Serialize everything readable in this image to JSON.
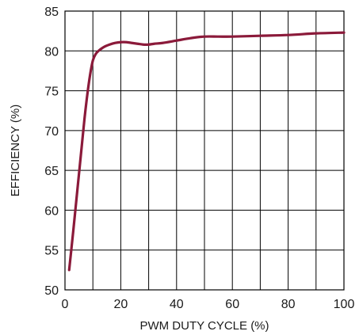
{
  "chart_data": {
    "type": "line",
    "title": "",
    "xlabel": "PWM DUTY CYCLE (%)",
    "ylabel": "EFFICIENCY (%)",
    "xlim": [
      0,
      100
    ],
    "ylim": [
      50,
      85
    ],
    "x_ticks": [
      0,
      20,
      40,
      60,
      80,
      100
    ],
    "y_ticks": [
      50,
      55,
      60,
      65,
      70,
      75,
      80,
      85
    ],
    "grid": true,
    "legend": "none",
    "series": [
      {
        "color": "#8b1a3a",
        "x": [
          1.5,
          3,
          4,
          5,
          6,
          7,
          8,
          9,
          10,
          11,
          12,
          14,
          16,
          18,
          20,
          22,
          24,
          26,
          28,
          30,
          32,
          35,
          40,
          45,
          50,
          55,
          60,
          70,
          80,
          90,
          100
        ],
        "y": [
          52.5,
          57.5,
          61,
          64.5,
          68,
          71.5,
          74.5,
          77,
          78.8,
          79.6,
          80.0,
          80.5,
          80.8,
          81.0,
          81.1,
          81.1,
          81.0,
          80.9,
          80.8,
          80.8,
          80.9,
          81.0,
          81.3,
          81.6,
          81.8,
          81.8,
          81.8,
          81.9,
          82.0,
          82.2,
          82.3
        ]
      }
    ]
  }
}
